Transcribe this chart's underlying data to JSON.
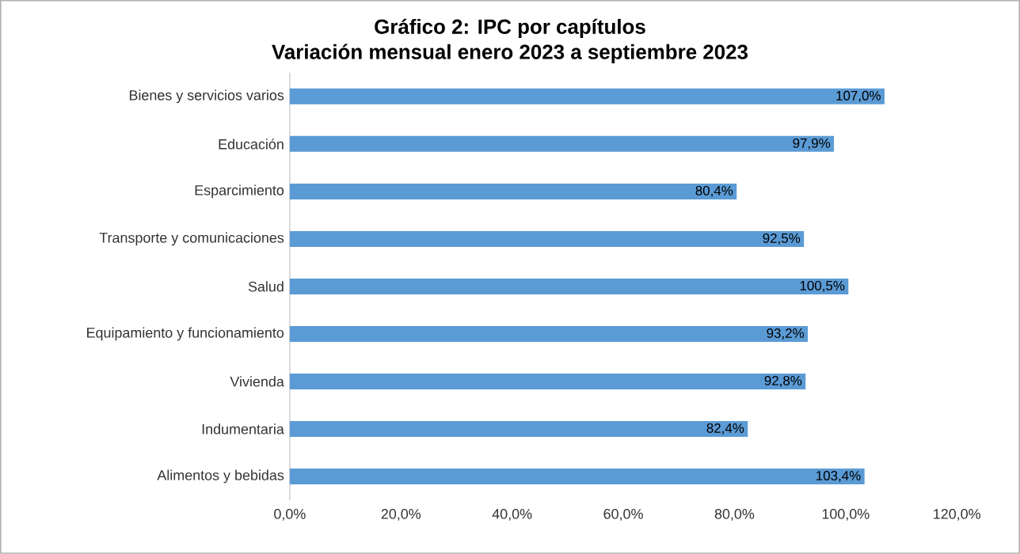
{
  "chart_data": {
    "type": "bar",
    "orientation": "horizontal",
    "title": "Gráfico 2: IPC por capítulos",
    "subtitle": "Variación mensual enero 2023 a septiembre 2023",
    "categories": [
      "Bienes y servicios varios",
      "Educación",
      "Esparcimiento",
      "Transporte y comunicaciones",
      "Salud",
      "Equipamiento y funcionamiento",
      "Vivienda",
      "Indumentaria",
      "Alimentos y bebidas"
    ],
    "values": [
      107.0,
      97.9,
      80.4,
      92.5,
      100.5,
      93.2,
      92.8,
      82.4,
      103.4
    ],
    "value_labels": [
      "107,0%",
      "97,9%",
      "80,4%",
      "92,5%",
      "100,5%",
      "93,2%",
      "92,8%",
      "82,4%",
      "103,4%"
    ],
    "color": "#5b9bd5",
    "xlim": [
      0,
      120
    ],
    "xticks": [
      {
        "value": 0,
        "label": "0,0%"
      },
      {
        "value": 20,
        "label": "20,0%"
      },
      {
        "value": 40,
        "label": "40,0%"
      },
      {
        "value": 60,
        "label": "60,0%"
      },
      {
        "value": 80,
        "label": "80,0%"
      },
      {
        "value": 100,
        "label": "100,0%"
      },
      {
        "value": 120,
        "label": "120,0%"
      }
    ],
    "grid": false
  }
}
